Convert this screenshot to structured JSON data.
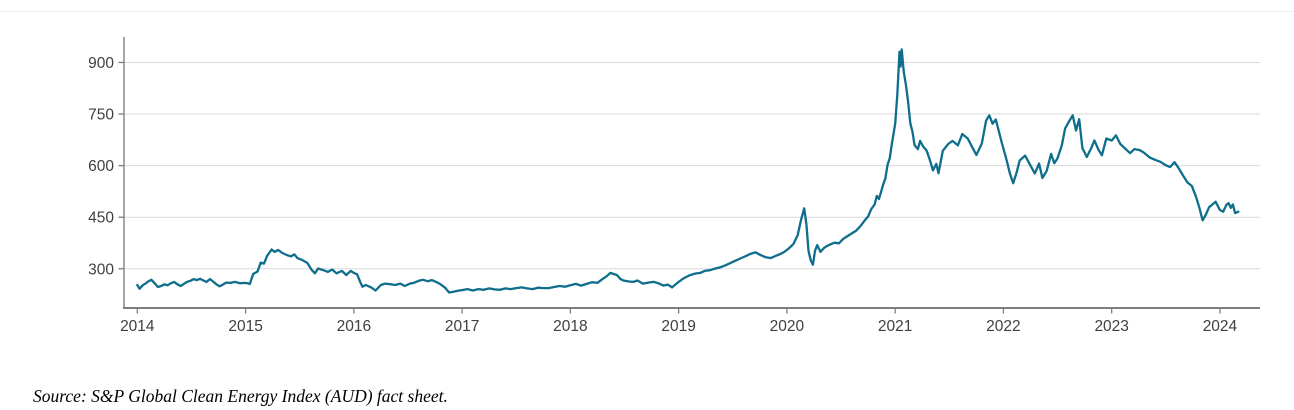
{
  "source_note": "Source: S&P Global Clean Energy Index (AUD) fact sheet.",
  "colors": {
    "line": "#0E6E8C",
    "grid": "#D9D9D9",
    "axis": "#7F7F7F",
    "tick_label": "#404040",
    "source_text": "#000000",
    "background": "#FFFFFF"
  },
  "chart_data": {
    "type": "line",
    "xlabel": "",
    "ylabel": "",
    "x_ticks": [
      2014,
      2015,
      2016,
      2017,
      2018,
      2019,
      2020,
      2021,
      2022,
      2023,
      2024
    ],
    "y_ticks": [
      300,
      450,
      600,
      750,
      900
    ],
    "xlim": [
      2013.877,
      2024.37
    ],
    "ylim": [
      186,
      974
    ],
    "grid": "horizontal-only",
    "legend": "none",
    "series": [
      {
        "name": "S&P Global Clean Energy Index (AUD)",
        "color": "#0E6E8C",
        "points": [
          [
            2014.0,
            253
          ],
          [
            2014.02,
            242
          ],
          [
            2014.05,
            252
          ],
          [
            2014.08,
            258
          ],
          [
            2014.1,
            263
          ],
          [
            2014.13,
            268
          ],
          [
            2014.16,
            258
          ],
          [
            2014.19,
            247
          ],
          [
            2014.22,
            250
          ],
          [
            2014.25,
            255
          ],
          [
            2014.28,
            252
          ],
          [
            2014.31,
            258
          ],
          [
            2014.34,
            262
          ],
          [
            2014.37,
            255
          ],
          [
            2014.4,
            250
          ],
          [
            2014.43,
            256
          ],
          [
            2014.46,
            262
          ],
          [
            2014.49,
            265
          ],
          [
            2014.52,
            270
          ],
          [
            2014.55,
            267
          ],
          [
            2014.58,
            271
          ],
          [
            2014.61,
            266
          ],
          [
            2014.64,
            262
          ],
          [
            2014.67,
            270
          ],
          [
            2014.7,
            263
          ],
          [
            2014.73,
            255
          ],
          [
            2014.76,
            249
          ],
          [
            2014.79,
            254
          ],
          [
            2014.82,
            260
          ],
          [
            2014.86,
            259
          ],
          [
            2014.9,
            262
          ],
          [
            2014.95,
            258
          ],
          [
            2015.0,
            259
          ],
          [
            2015.04,
            256
          ],
          [
            2015.07,
            285
          ],
          [
            2015.11,
            292
          ],
          [
            2015.14,
            318
          ],
          [
            2015.17,
            315
          ],
          [
            2015.2,
            338
          ],
          [
            2015.24,
            356
          ],
          [
            2015.27,
            349
          ],
          [
            2015.3,
            355
          ],
          [
            2015.34,
            346
          ],
          [
            2015.38,
            340
          ],
          [
            2015.42,
            336
          ],
          [
            2015.45,
            342
          ],
          [
            2015.48,
            331
          ],
          [
            2015.52,
            326
          ],
          [
            2015.57,
            317
          ],
          [
            2015.61,
            297
          ],
          [
            2015.64,
            287
          ],
          [
            2015.67,
            301
          ],
          [
            2015.72,
            296
          ],
          [
            2015.76,
            291
          ],
          [
            2015.8,
            298
          ],
          [
            2015.84,
            287
          ],
          [
            2015.89,
            294
          ],
          [
            2015.93,
            282
          ],
          [
            2015.97,
            294
          ],
          [
            2016.0,
            288
          ],
          [
            2016.03,
            284
          ],
          [
            2016.06,
            261
          ],
          [
            2016.08,
            248
          ],
          [
            2016.11,
            253
          ],
          [
            2016.16,
            246
          ],
          [
            2016.2,
            237
          ],
          [
            2016.25,
            253
          ],
          [
            2016.29,
            257
          ],
          [
            2016.34,
            255
          ],
          [
            2016.38,
            253
          ],
          [
            2016.43,
            257
          ],
          [
            2016.47,
            250
          ],
          [
            2016.52,
            257
          ],
          [
            2016.56,
            260
          ],
          [
            2016.6,
            265
          ],
          [
            2016.64,
            268
          ],
          [
            2016.68,
            264
          ],
          [
            2016.72,
            267
          ],
          [
            2016.76,
            262
          ],
          [
            2016.8,
            255
          ],
          [
            2016.84,
            246
          ],
          [
            2016.88,
            231
          ],
          [
            2016.92,
            233
          ],
          [
            2016.96,
            236
          ],
          [
            2017.0,
            238
          ],
          [
            2017.05,
            241
          ],
          [
            2017.1,
            237
          ],
          [
            2017.15,
            241
          ],
          [
            2017.2,
            239
          ],
          [
            2017.25,
            243
          ],
          [
            2017.3,
            240
          ],
          [
            2017.35,
            239
          ],
          [
            2017.4,
            243
          ],
          [
            2017.45,
            241
          ],
          [
            2017.5,
            244
          ],
          [
            2017.55,
            246
          ],
          [
            2017.6,
            243
          ],
          [
            2017.65,
            241
          ],
          [
            2017.7,
            245
          ],
          [
            2017.75,
            244
          ],
          [
            2017.8,
            244
          ],
          [
            2017.85,
            247
          ],
          [
            2017.9,
            250
          ],
          [
            2017.95,
            248
          ],
          [
            2018.0,
            252
          ],
          [
            2018.05,
            256
          ],
          [
            2018.1,
            251
          ],
          [
            2018.15,
            256
          ],
          [
            2018.2,
            261
          ],
          [
            2018.25,
            259
          ],
          [
            2018.3,
            271
          ],
          [
            2018.33,
            277
          ],
          [
            2018.37,
            288
          ],
          [
            2018.4,
            285
          ],
          [
            2018.43,
            282
          ],
          [
            2018.46,
            271
          ],
          [
            2018.49,
            266
          ],
          [
            2018.54,
            263
          ],
          [
            2018.58,
            262
          ],
          [
            2018.62,
            266
          ],
          [
            2018.67,
            257
          ],
          [
            2018.72,
            260
          ],
          [
            2018.77,
            262
          ],
          [
            2018.81,
            258
          ],
          [
            2018.86,
            251
          ],
          [
            2018.9,
            254
          ],
          [
            2018.94,
            246
          ],
          [
            2019.0,
            262
          ],
          [
            2019.05,
            273
          ],
          [
            2019.1,
            281
          ],
          [
            2019.15,
            286
          ],
          [
            2019.2,
            288
          ],
          [
            2019.24,
            294
          ],
          [
            2019.29,
            296
          ],
          [
            2019.33,
            300
          ],
          [
            2019.38,
            304
          ],
          [
            2019.43,
            310
          ],
          [
            2019.48,
            317
          ],
          [
            2019.52,
            323
          ],
          [
            2019.57,
            330
          ],
          [
            2019.62,
            337
          ],
          [
            2019.66,
            343
          ],
          [
            2019.71,
            348
          ],
          [
            2019.75,
            341
          ],
          [
            2019.8,
            334
          ],
          [
            2019.85,
            331
          ],
          [
            2019.9,
            338
          ],
          [
            2019.94,
            343
          ],
          [
            2019.98,
            350
          ],
          [
            2020.02,
            360
          ],
          [
            2020.06,
            372
          ],
          [
            2020.1,
            398
          ],
          [
            2020.13,
            442
          ],
          [
            2020.16,
            476
          ],
          [
            2020.18,
            430
          ],
          [
            2020.2,
            352
          ],
          [
            2020.22,
            325
          ],
          [
            2020.24,
            312
          ],
          [
            2020.26,
            352
          ],
          [
            2020.28,
            369
          ],
          [
            2020.31,
            349
          ],
          [
            2020.34,
            360
          ],
          [
            2020.37,
            366
          ],
          [
            2020.4,
            371
          ],
          [
            2020.44,
            376
          ],
          [
            2020.48,
            374
          ],
          [
            2020.52,
            387
          ],
          [
            2020.56,
            395
          ],
          [
            2020.6,
            403
          ],
          [
            2020.64,
            411
          ],
          [
            2020.68,
            424
          ],
          [
            2020.72,
            441
          ],
          [
            2020.75,
            452
          ],
          [
            2020.78,
            474
          ],
          [
            2020.81,
            487
          ],
          [
            2020.83,
            512
          ],
          [
            2020.85,
            503
          ],
          [
            2020.87,
            524
          ],
          [
            2020.89,
            545
          ],
          [
            2020.91,
            563
          ],
          [
            2020.93,
            603
          ],
          [
            2020.95,
            621
          ],
          [
            2020.97,
            664
          ],
          [
            2021.0,
            722
          ],
          [
            2021.02,
            806
          ],
          [
            2021.04,
            931
          ],
          [
            2021.05,
            888
          ],
          [
            2021.06,
            938
          ],
          [
            2021.08,
            872
          ],
          [
            2021.1,
            833
          ],
          [
            2021.12,
            786
          ],
          [
            2021.14,
            723
          ],
          [
            2021.16,
            698
          ],
          [
            2021.18,
            659
          ],
          [
            2021.21,
            648
          ],
          [
            2021.23,
            672
          ],
          [
            2021.26,
            655
          ],
          [
            2021.29,
            644
          ],
          [
            2021.32,
            617
          ],
          [
            2021.35,
            586
          ],
          [
            2021.38,
            605
          ],
          [
            2021.4,
            578
          ],
          [
            2021.44,
            643
          ],
          [
            2021.49,
            663
          ],
          [
            2021.53,
            672
          ],
          [
            2021.58,
            659
          ],
          [
            2021.62,
            692
          ],
          [
            2021.67,
            679
          ],
          [
            2021.72,
            649
          ],
          [
            2021.75,
            631
          ],
          [
            2021.8,
            664
          ],
          [
            2021.84,
            731
          ],
          [
            2021.87,
            746
          ],
          [
            2021.9,
            722
          ],
          [
            2021.93,
            734
          ],
          [
            2021.98,
            672
          ],
          [
            2022.03,
            615
          ],
          [
            2022.06,
            577
          ],
          [
            2022.09,
            549
          ],
          [
            2022.12,
            578
          ],
          [
            2022.15,
            615
          ],
          [
            2022.2,
            629
          ],
          [
            2022.24,
            606
          ],
          [
            2022.29,
            577
          ],
          [
            2022.33,
            606
          ],
          [
            2022.36,
            564
          ],
          [
            2022.4,
            585
          ],
          [
            2022.44,
            634
          ],
          [
            2022.47,
            607
          ],
          [
            2022.5,
            621
          ],
          [
            2022.54,
            660
          ],
          [
            2022.57,
            708
          ],
          [
            2022.61,
            731
          ],
          [
            2022.64,
            746
          ],
          [
            2022.67,
            702
          ],
          [
            2022.7,
            735
          ],
          [
            2022.73,
            651
          ],
          [
            2022.77,
            625
          ],
          [
            2022.81,
            650
          ],
          [
            2022.84,
            673
          ],
          [
            2022.88,
            645
          ],
          [
            2022.91,
            630
          ],
          [
            2022.95,
            679
          ],
          [
            2023.0,
            673
          ],
          [
            2023.04,
            688
          ],
          [
            2023.08,
            663
          ],
          [
            2023.12,
            651
          ],
          [
            2023.17,
            636
          ],
          [
            2023.21,
            648
          ],
          [
            2023.26,
            645
          ],
          [
            2023.3,
            637
          ],
          [
            2023.35,
            624
          ],
          [
            2023.4,
            617
          ],
          [
            2023.45,
            611
          ],
          [
            2023.5,
            601
          ],
          [
            2023.54,
            596
          ],
          [
            2023.58,
            610
          ],
          [
            2023.62,
            592
          ],
          [
            2023.66,
            571
          ],
          [
            2023.7,
            551
          ],
          [
            2023.74,
            541
          ],
          [
            2023.78,
            509
          ],
          [
            2023.81,
            477
          ],
          [
            2023.84,
            441
          ],
          [
            2023.87,
            458
          ],
          [
            2023.9,
            479
          ],
          [
            2023.93,
            487
          ],
          [
            2023.96,
            495
          ],
          [
            2024.0,
            471
          ],
          [
            2024.03,
            466
          ],
          [
            2024.06,
            486
          ],
          [
            2024.08,
            491
          ],
          [
            2024.1,
            477
          ],
          [
            2024.12,
            487
          ],
          [
            2024.14,
            462
          ],
          [
            2024.17,
            466
          ]
        ]
      }
    ]
  }
}
